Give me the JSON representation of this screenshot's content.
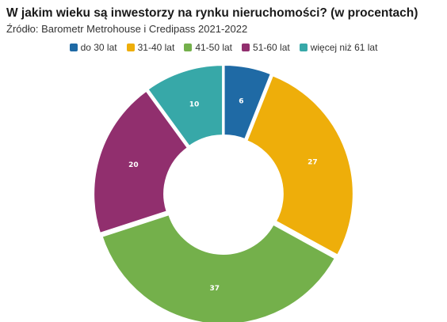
{
  "header": {
    "title": "W jakim wieku są inwestorzy na rynku nieruchomości? (w procentach)",
    "source": "Źródło: Barometr Metrohouse i Credipass 2021-2022"
  },
  "chart_data": {
    "type": "pie",
    "donut": true,
    "title": "W jakim wieku są inwestorzy na rynku nieruchomości? (w procentach)",
    "subtitle": "Źródło: Barometr Metrohouse i Credipass 2021-2022",
    "legend_position": "top",
    "categories": [
      "do 30 lat",
      "31-40 lat",
      "41-50 lat",
      "51-60 lat",
      "więcej niż 61 lat"
    ],
    "values": [
      6,
      27,
      37,
      20,
      10
    ],
    "colors": [
      "#1f6aa5",
      "#eeae0a",
      "#74b04b",
      "#912f6e",
      "#37a8a8"
    ]
  }
}
